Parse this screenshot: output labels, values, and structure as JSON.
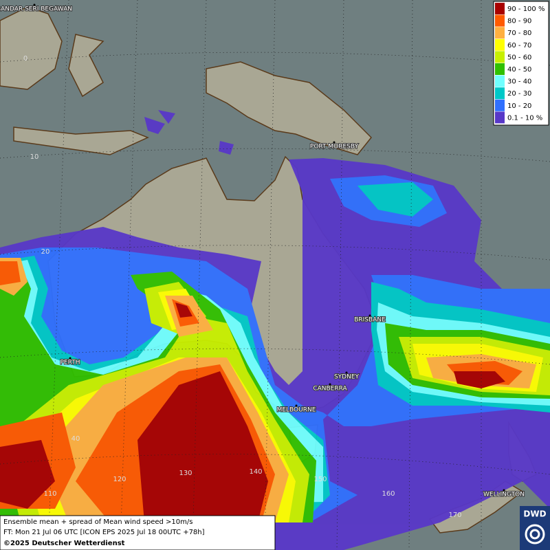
{
  "map": {
    "cities": [
      "BANDAR SERI BEGAWAN",
      "PORT MORESBY",
      "BRISBANE",
      "PERTH",
      "SYDNEY",
      "CANBERRA",
      "MELBOURNE",
      "WELLINGTON"
    ],
    "grid_labels": [
      "0",
      "10",
      "20",
      "40",
      "110",
      "120",
      "130",
      "140",
      "150",
      "160",
      "170"
    ],
    "sea_color": "#6f7f80",
    "land_color": "#a9a794"
  },
  "legend": {
    "entries": [
      {
        "label": "90 - 100 %",
        "color": "#a80000"
      },
      {
        "label": "80 - 90",
        "color": "#ff5a00"
      },
      {
        "label": "70 - 80",
        "color": "#ffb040"
      },
      {
        "label": "60 - 70",
        "color": "#ffff00"
      },
      {
        "label": "50 - 60",
        "color": "#c8f000"
      },
      {
        "label": "40 - 50",
        "color": "#30c000"
      },
      {
        "label": "30 - 40",
        "color": "#70ffff"
      },
      {
        "label": "20 - 30",
        "color": "#00c8c8"
      },
      {
        "label": "10 - 20",
        "color": "#3070ff"
      },
      {
        "label": "0.1 - 10 %",
        "color": "#5838c8"
      }
    ]
  },
  "footer": {
    "line1": "Ensemble mean + spread of Mean wind speed >10m/s",
    "line2": "FT: Mon 21 Jul 06 UTC [ICON EPS 2025 Jul 18 00UTC +78h]",
    "copyright": "©2025 Deutscher Wetterdienst"
  },
  "logo": "DWD"
}
